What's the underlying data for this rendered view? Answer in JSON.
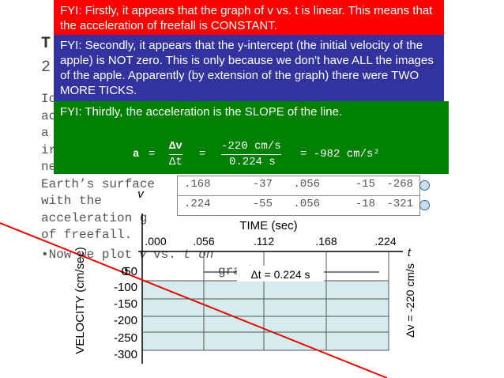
{
  "slide": {
    "title": "T",
    "subtitle": "2",
    "body_lines": [
      "Io",
      "ac",
      "a",
      "ir",
      "ne",
      "Earth’s surface",
      "with the",
      "acceleration g",
      "of freefall."
    ],
    "bullet": [
      "•Now we plot",
      "v",
      "vs.",
      "t on",
      "graph."
    ],
    "table_rows": [
      [
        ".168",
        "-37",
        ".056",
        "-15",
        "-268"
      ],
      [
        ".224",
        "-55",
        ".056",
        "-18",
        "-321"
      ]
    ],
    "graph": {
      "v_label": "v",
      "t_label": "t",
      "x_title": "TIME (sec)",
      "y_title": "VELOCITY (cm/sec)",
      "x_ticks": [
        ".000",
        ".056",
        ".112",
        ".168",
        ".224"
      ],
      "y_ticks": [
        "0",
        "-50",
        "-100",
        "-150",
        "-200",
        "-250",
        "-300"
      ],
      "dt_label": "Δt = 0.224 s",
      "dv_label": "Δv = -220 cm/s"
    },
    "note1": "FYI:  Firstly, it appears that the graph of v vs. t is linear.  This means that the acceleration of freefall is CONSTANT.",
    "note2": "FYI:  Secondly, it appears that the y-intercept (the initial velocity of the apple) is NOT zero.  This is only because we don't have ALL the images of the apple.  Apparently (by extension of the graph) there were TWO MORE TICKS.",
    "note3": "FYI:  Thirdly, the acceleration is the SLOPE of the line.",
    "equation": {
      "a": "a",
      "eq1": "=",
      "dv": "Δv",
      "dt": "Δt",
      "eq2": "=",
      "num": "-220 cm/s",
      "den": "0.224 s",
      "result": "= -982 cm/s²"
    }
  }
}
